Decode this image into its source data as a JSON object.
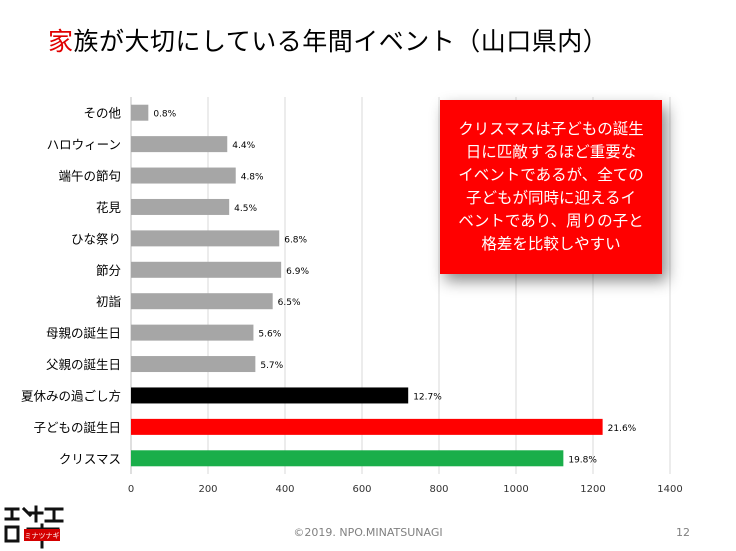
{
  "title": {
    "first_char": "家",
    "rest": "族が大切にしている年間イベント（山口県内）"
  },
  "callout": {
    "lines": [
      "クリスマスは子どもの誕生",
      "日に匹敵するほど重要な",
      "イベントであるが、全ての",
      "子どもが同時に迎えるイ",
      "ベントであり、周りの子と",
      "格差を比較しやすい"
    ]
  },
  "footer": {
    "copyright": "©2019.  NPO.MINATSUNAGI",
    "page": "12"
  },
  "logo": {
    "text": "ミナツナギ",
    "icon": "minatsunagi-logo"
  },
  "colors": {
    "gray": "#a6a6a6",
    "black": "#000000",
    "red": "#ff0000",
    "green": "#1aae4a",
    "grid": "#d9d9d9"
  },
  "chart_data": {
    "type": "bar",
    "orientation": "horizontal",
    "categories": [
      "その他",
      "ハロウィーン",
      "端午の節句",
      "花見",
      "ひな祭り",
      "節分",
      "初詣",
      "母親の誕生日",
      "父親の誕生日",
      "夏休みの過ごし方",
      "子どもの誕生日",
      "クリスマス"
    ],
    "values": [
      45,
      250,
      272,
      255,
      385,
      390,
      368,
      318,
      323,
      720,
      1225,
      1123
    ],
    "data_labels": [
      "0.8%",
      "4.4%",
      "4.8%",
      "4.5%",
      "6.8%",
      "6.9%",
      "6.5%",
      "5.6%",
      "5.7%",
      "12.7%",
      "21.6%",
      "19.8%"
    ],
    "bar_colors": [
      "gray",
      "gray",
      "gray",
      "gray",
      "gray",
      "gray",
      "gray",
      "gray",
      "gray",
      "black",
      "red",
      "green"
    ],
    "xlim": [
      0,
      1400
    ],
    "xticks": [
      0,
      200,
      400,
      600,
      800,
      1000,
      1200,
      1400
    ],
    "grid": true,
    "legend": "none"
  }
}
